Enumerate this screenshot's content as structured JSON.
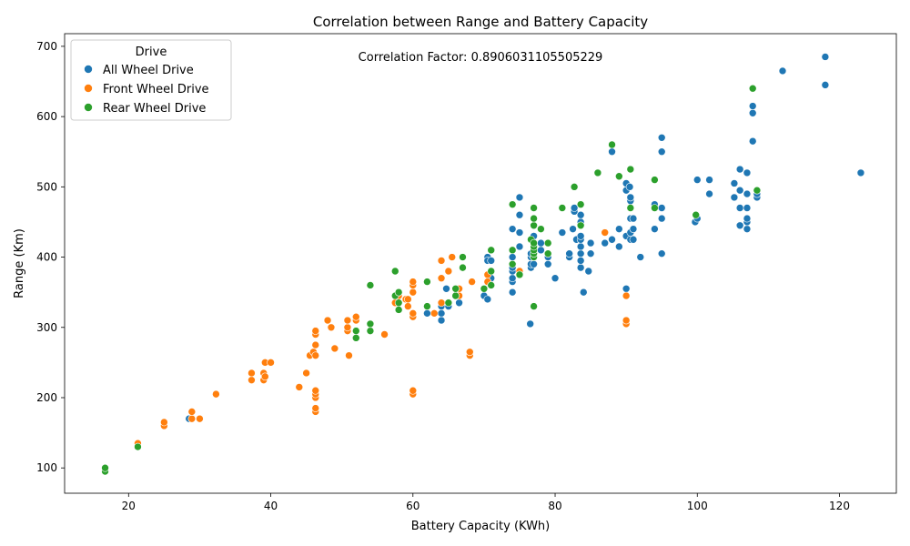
{
  "chart_data": {
    "type": "scatter",
    "title": "Correlation between Range and Battery Capacity",
    "xlabel": "Battery Capacity (KWh)",
    "ylabel": "Range (Km)",
    "xlim": [
      11,
      128
    ],
    "ylim": [
      64,
      718
    ],
    "xticks": [
      20,
      40,
      60,
      80,
      100,
      120
    ],
    "yticks": [
      100,
      200,
      300,
      400,
      500,
      600,
      700
    ],
    "grid": false,
    "annotation": "Correlation Factor: 0.8906031105505229",
    "legend": {
      "title": "Drive",
      "placement": "top-left"
    },
    "series": [
      {
        "name": "All Wheel Drive",
        "color": "#1f77b4",
        "points": [
          [
            28.5,
            170
          ],
          [
            62,
            320
          ],
          [
            64,
            320
          ],
          [
            64,
            310
          ],
          [
            64,
            330
          ],
          [
            64.7,
            355
          ],
          [
            65,
            330
          ],
          [
            66.5,
            335
          ],
          [
            70,
            345
          ],
          [
            70.5,
            340
          ],
          [
            70.5,
            400
          ],
          [
            70.5,
            395
          ],
          [
            71,
            370
          ],
          [
            71,
            395
          ],
          [
            74,
            350
          ],
          [
            74,
            365
          ],
          [
            74,
            370
          ],
          [
            74,
            380
          ],
          [
            74,
            385
          ],
          [
            74,
            400
          ],
          [
            74,
            440
          ],
          [
            75,
            415
          ],
          [
            75,
            435
          ],
          [
            75,
            460
          ],
          [
            75,
            485
          ],
          [
            76.5,
            305
          ],
          [
            76.6,
            385
          ],
          [
            76.6,
            390
          ],
          [
            76.6,
            400
          ],
          [
            76.6,
            405
          ],
          [
            77,
            390
          ],
          [
            77,
            400
          ],
          [
            77,
            410
          ],
          [
            77,
            430
          ],
          [
            78,
            410
          ],
          [
            78,
            420
          ],
          [
            79,
            390
          ],
          [
            79,
            400
          ],
          [
            80,
            370
          ],
          [
            81,
            435
          ],
          [
            82,
            400
          ],
          [
            82,
            405
          ],
          [
            82.5,
            440
          ],
          [
            82.7,
            465
          ],
          [
            82.7,
            470
          ],
          [
            83,
            425
          ],
          [
            83.6,
            385
          ],
          [
            83.6,
            395
          ],
          [
            83.6,
            405
          ],
          [
            83.6,
            415
          ],
          [
            83.6,
            425
          ],
          [
            83.6,
            430
          ],
          [
            83.6,
            450
          ],
          [
            83.6,
            460
          ],
          [
            84,
            350
          ],
          [
            84.7,
            380
          ],
          [
            85,
            405
          ],
          [
            85,
            420
          ],
          [
            87,
            420
          ],
          [
            88,
            425
          ],
          [
            88,
            550
          ],
          [
            89,
            415
          ],
          [
            89,
            440
          ],
          [
            90,
            355
          ],
          [
            90,
            430
          ],
          [
            90,
            495
          ],
          [
            90,
            505
          ],
          [
            90.5,
            500
          ],
          [
            90.6,
            425
          ],
          [
            90.6,
            435
          ],
          [
            90.6,
            455
          ],
          [
            90.6,
            480
          ],
          [
            90.6,
            485
          ],
          [
            91,
            425
          ],
          [
            91,
            440
          ],
          [
            91,
            455
          ],
          [
            92,
            400
          ],
          [
            94,
            440
          ],
          [
            94,
            475
          ],
          [
            95,
            405
          ],
          [
            95,
            455
          ],
          [
            95,
            470
          ],
          [
            95,
            550
          ],
          [
            95,
            570
          ],
          [
            99.7,
            450
          ],
          [
            100,
            455
          ],
          [
            100,
            510
          ],
          [
            101.7,
            490
          ],
          [
            101.7,
            510
          ],
          [
            105.2,
            485
          ],
          [
            105.2,
            505
          ],
          [
            106,
            445
          ],
          [
            106,
            470
          ],
          [
            106,
            495
          ],
          [
            106,
            525
          ],
          [
            107,
            440
          ],
          [
            107,
            450
          ],
          [
            107,
            455
          ],
          [
            107,
            470
          ],
          [
            107,
            490
          ],
          [
            107,
            520
          ],
          [
            107.8,
            565
          ],
          [
            107.8,
            605
          ],
          [
            107.8,
            615
          ],
          [
            108.4,
            485
          ],
          [
            108.4,
            490
          ],
          [
            112,
            665
          ],
          [
            118,
            645
          ],
          [
            118,
            685
          ],
          [
            123,
            520
          ]
        ]
      },
      {
        "name": "Front Wheel Drive",
        "color": "#ff7f0e",
        "points": [
          [
            21.3,
            135
          ],
          [
            25,
            160
          ],
          [
            25,
            165
          ],
          [
            28.9,
            170
          ],
          [
            28.9,
            180
          ],
          [
            30,
            170
          ],
          [
            32.3,
            205
          ],
          [
            37.3,
            225
          ],
          [
            37.3,
            235
          ],
          [
            39,
            225
          ],
          [
            39,
            235
          ],
          [
            39.2,
            230
          ],
          [
            39.2,
            250
          ],
          [
            40,
            250
          ],
          [
            44,
            215
          ],
          [
            45,
            235
          ],
          [
            45.5,
            260
          ],
          [
            46,
            265
          ],
          [
            46.3,
            180
          ],
          [
            46.3,
            185
          ],
          [
            46.3,
            200
          ],
          [
            46.3,
            205
          ],
          [
            46.3,
            210
          ],
          [
            46.3,
            260
          ],
          [
            46.3,
            275
          ],
          [
            46.3,
            290
          ],
          [
            46.3,
            295
          ],
          [
            48,
            310
          ],
          [
            48.5,
            300
          ],
          [
            49,
            270
          ],
          [
            50.8,
            295
          ],
          [
            50.8,
            300
          ],
          [
            50.8,
            310
          ],
          [
            51,
            260
          ],
          [
            52,
            310
          ],
          [
            52,
            315
          ],
          [
            56,
            290
          ],
          [
            57.5,
            335
          ],
          [
            58,
            345
          ],
          [
            59,
            340
          ],
          [
            59.3,
            330
          ],
          [
            59.3,
            340
          ],
          [
            60,
            205
          ],
          [
            60,
            210
          ],
          [
            60,
            315
          ],
          [
            60,
            320
          ],
          [
            60,
            350
          ],
          [
            60,
            360
          ],
          [
            60,
            365
          ],
          [
            63,
            320
          ],
          [
            64,
            335
          ],
          [
            64,
            370
          ],
          [
            64,
            395
          ],
          [
            65,
            380
          ],
          [
            65.5,
            400
          ],
          [
            66.5,
            345
          ],
          [
            66.5,
            355
          ],
          [
            68,
            260
          ],
          [
            68,
            265
          ],
          [
            68.3,
            365
          ],
          [
            70.5,
            365
          ],
          [
            70.5,
            375
          ],
          [
            75,
            380
          ],
          [
            87,
            435
          ],
          [
            90,
            305
          ],
          [
            90,
            310
          ],
          [
            90,
            345
          ]
        ]
      },
      {
        "name": "Rear Wheel Drive",
        "color": "#2ca02c",
        "points": [
          [
            16.7,
            95
          ],
          [
            16.7,
            100
          ],
          [
            21.3,
            130
          ],
          [
            52,
            285
          ],
          [
            52,
            295
          ],
          [
            54,
            295
          ],
          [
            54,
            305
          ],
          [
            54,
            360
          ],
          [
            57.5,
            345
          ],
          [
            57.5,
            380
          ],
          [
            58,
            325
          ],
          [
            58,
            335
          ],
          [
            58,
            350
          ],
          [
            62,
            330
          ],
          [
            62,
            365
          ],
          [
            65,
            335
          ],
          [
            66,
            345
          ],
          [
            66,
            355
          ],
          [
            67,
            385
          ],
          [
            67,
            400
          ],
          [
            70,
            355
          ],
          [
            71,
            360
          ],
          [
            71,
            380
          ],
          [
            71,
            410
          ],
          [
            74,
            390
          ],
          [
            74,
            410
          ],
          [
            74,
            475
          ],
          [
            75,
            375
          ],
          [
            76.6,
            425
          ],
          [
            77,
            330
          ],
          [
            77,
            400
          ],
          [
            77,
            405
          ],
          [
            77,
            410
          ],
          [
            77,
            415
          ],
          [
            77,
            420
          ],
          [
            77,
            445
          ],
          [
            77,
            455
          ],
          [
            77,
            470
          ],
          [
            78,
            440
          ],
          [
            79,
            405
          ],
          [
            79,
            420
          ],
          [
            81,
            470
          ],
          [
            82.7,
            500
          ],
          [
            83.6,
            445
          ],
          [
            83.6,
            475
          ],
          [
            86,
            520
          ],
          [
            88,
            560
          ],
          [
            89,
            515
          ],
          [
            90.6,
            470
          ],
          [
            90.6,
            525
          ],
          [
            94,
            470
          ],
          [
            94,
            510
          ],
          [
            99.8,
            460
          ],
          [
            107.8,
            640
          ],
          [
            108.4,
            495
          ]
        ]
      }
    ]
  }
}
